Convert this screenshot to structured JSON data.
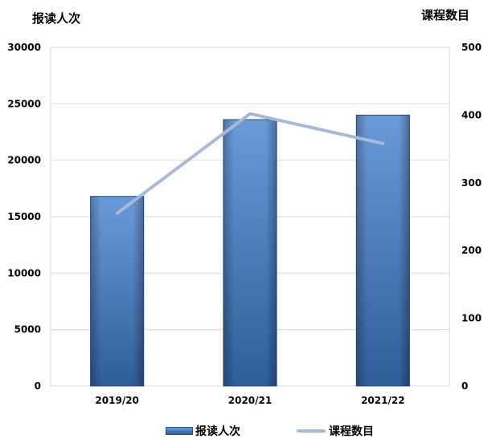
{
  "chart_data": {
    "type": "bar",
    "categories": [
      "2019/20",
      "2020/21",
      "2021/22"
    ],
    "series": [
      {
        "name": "报读人次",
        "type": "bar",
        "axis": "left",
        "values": [
          16800,
          23600,
          24000
        ]
      },
      {
        "name": "课程数目",
        "type": "line",
        "axis": "right",
        "values": [
          255,
          402,
          358
        ]
      }
    ],
    "ylabel": "报读人次",
    "y2label": "课程数目",
    "ylim": [
      0,
      30000
    ],
    "y2lim": [
      0,
      500
    ],
    "yticks": [
      "0",
      "5000",
      "10000",
      "15000",
      "20000",
      "25000",
      "30000"
    ],
    "y2ticks": [
      "0",
      "100",
      "200",
      "300",
      "400",
      "500"
    ],
    "grid": true,
    "legend_position": "bottom"
  },
  "colors": {
    "bar_top": "#6a9ad8",
    "bar_bottom": "#2f5d99",
    "line": "#a8b9d8",
    "grid": "#d9d9d9"
  }
}
